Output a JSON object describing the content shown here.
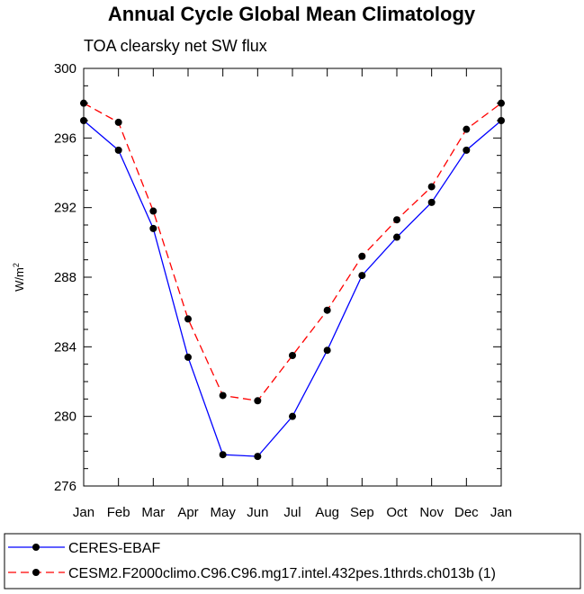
{
  "chart_data": {
    "type": "line",
    "title": "Annual Cycle Global Mean Climatology",
    "subtitle": "TOA clearsky net SW flux",
    "xlabel": "",
    "ylabel": "W/m",
    "ylabel_superscript": "2",
    "categories": [
      "Jan",
      "Feb",
      "Mar",
      "Apr",
      "May",
      "Jun",
      "Jul",
      "Aug",
      "Sep",
      "Oct",
      "Nov",
      "Dec",
      "Jan"
    ],
    "ylim": [
      276,
      300
    ],
    "yticks": [
      "276",
      "280",
      "284",
      "288",
      "292",
      "296",
      "300"
    ],
    "series": [
      {
        "name": "CERES-EBAF",
        "color": "#0000ff",
        "dash": "solid",
        "marker": "filled-circle",
        "values": [
          297.0,
          295.3,
          290.8,
          283.4,
          277.8,
          277.7,
          280.0,
          283.8,
          288.1,
          290.3,
          292.3,
          295.3,
          297.0
        ]
      },
      {
        "name": "CESM2.F2000climo.C96.C96.mg17.intel.432pes.1thrds.ch013b (1)",
        "color": "#ff0000",
        "dash": "dashed",
        "marker": "filled-circle",
        "values": [
          298.0,
          296.9,
          291.8,
          285.6,
          281.2,
          280.9,
          283.5,
          286.1,
          289.2,
          291.3,
          293.2,
          296.5,
          298.0
        ]
      }
    ],
    "legend_position": "bottom"
  }
}
